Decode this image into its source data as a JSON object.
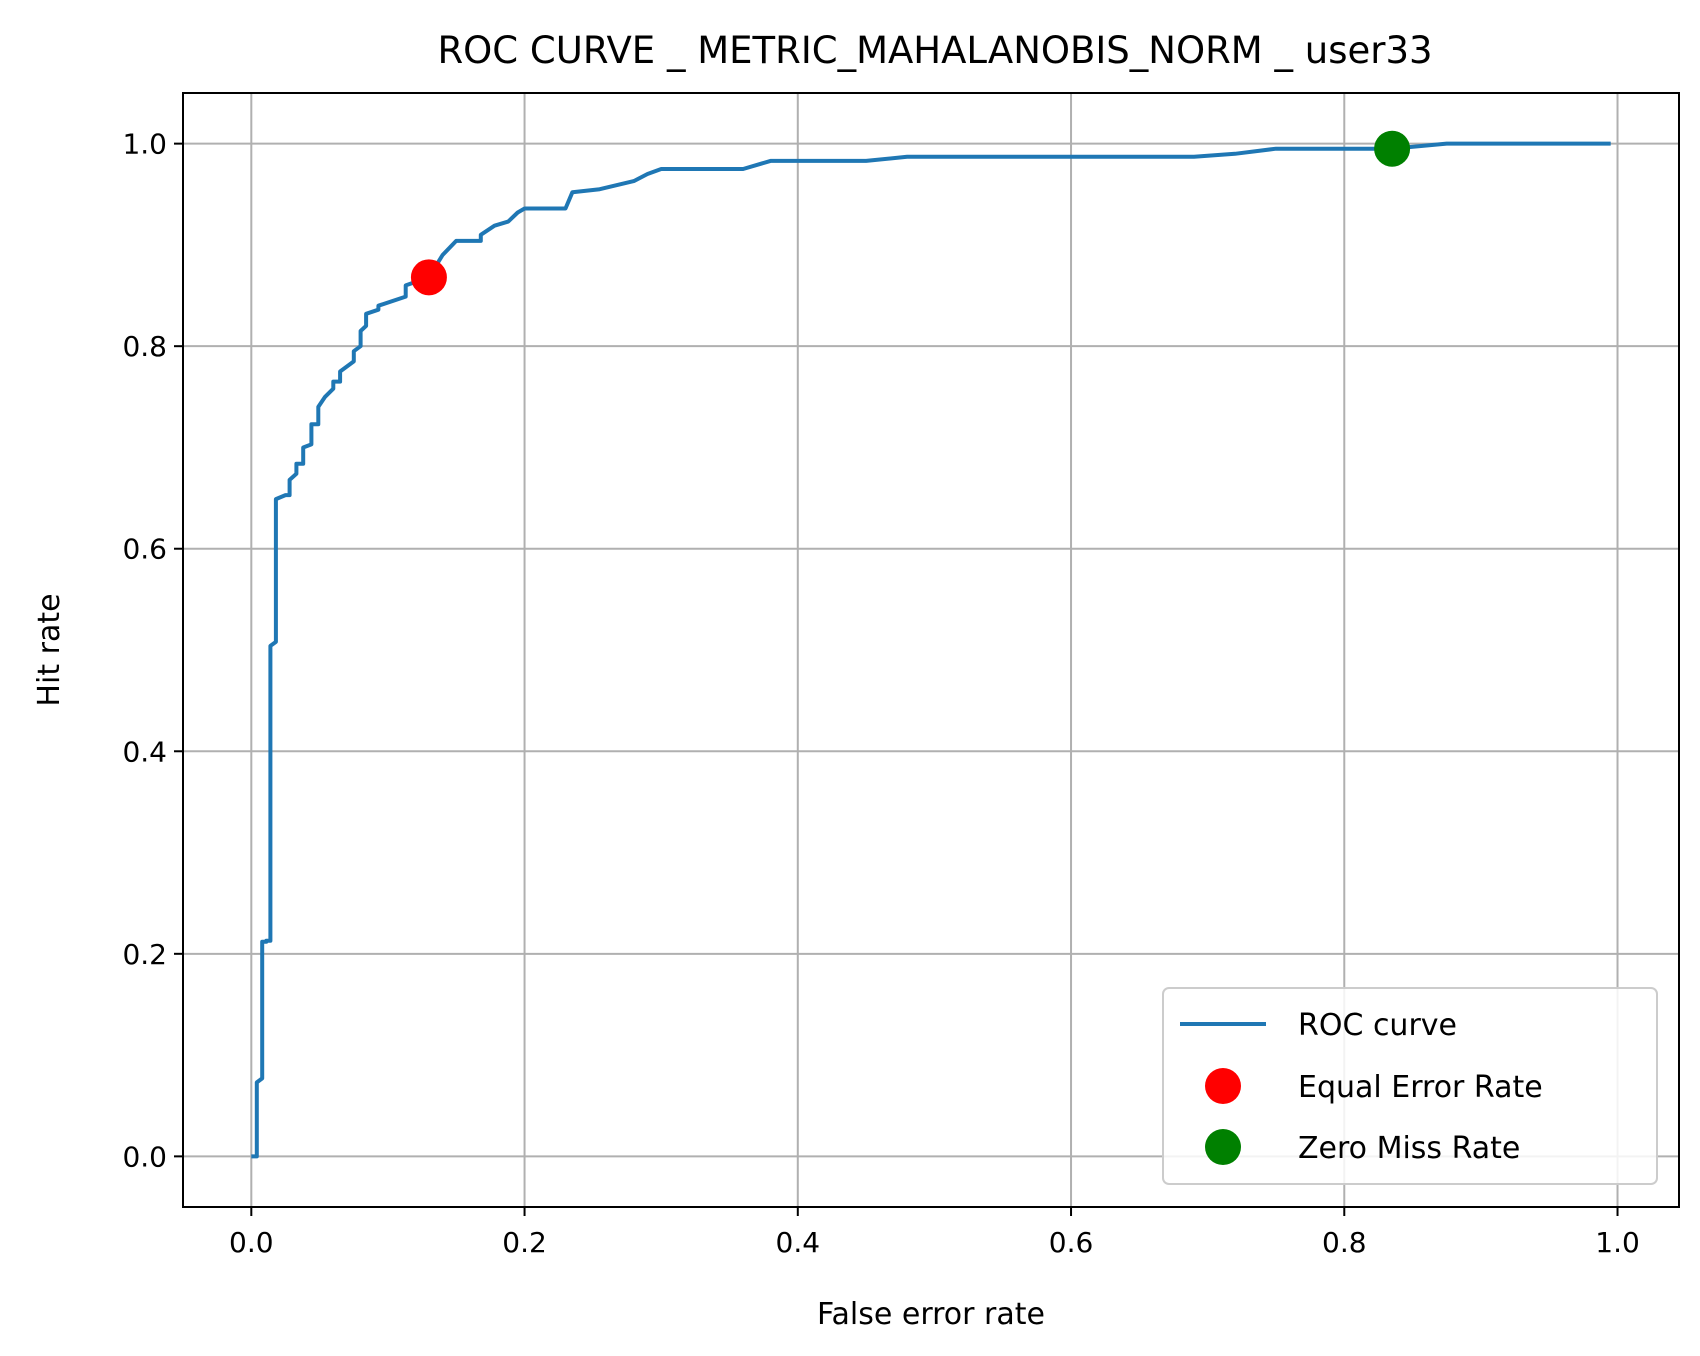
{
  "chart_data": {
    "type": "line",
    "title": "ROC CURVE _ METRIC_MAHALANOBIS_NORM _ user33",
    "xlabel": "False error rate",
    "ylabel": "Hit rate",
    "xlim": [
      -0.05,
      1.045
    ],
    "ylim": [
      -0.05,
      1.05
    ],
    "xticks": [
      0.0,
      0.2,
      0.4,
      0.6,
      0.8,
      1.0
    ],
    "xtick_labels": [
      "0.0",
      "0.2",
      "0.4",
      "0.6",
      "0.8",
      "1.0"
    ],
    "yticks": [
      0.0,
      0.2,
      0.4,
      0.6,
      0.8,
      1.0
    ],
    "ytick_labels": [
      "0.0",
      "0.2",
      "0.4",
      "0.6",
      "0.8",
      "1.0"
    ],
    "grid": true,
    "legend_position": "lower-right",
    "series": [
      {
        "name": "ROC curve",
        "color": "#1f77b4",
        "x": [
          0.0,
          0.004,
          0.004,
          0.008,
          0.008,
          0.011,
          0.011,
          0.014,
          0.014,
          0.018,
          0.018,
          0.025,
          0.028,
          0.028,
          0.033,
          0.033,
          0.038,
          0.038,
          0.044,
          0.044,
          0.049,
          0.049,
          0.054,
          0.06,
          0.06,
          0.065,
          0.065,
          0.075,
          0.075,
          0.08,
          0.08,
          0.084,
          0.084,
          0.093,
          0.093,
          0.113,
          0.113,
          0.13,
          0.14,
          0.15,
          0.168,
          0.168,
          0.178,
          0.188,
          0.195,
          0.2,
          0.23,
          0.235,
          0.255,
          0.28,
          0.29,
          0.3,
          0.36,
          0.38,
          0.45,
          0.48,
          0.69,
          0.72,
          0.75,
          0.835,
          0.875,
          0.995
        ],
        "y": [
          0.0,
          0.0,
          0.073,
          0.077,
          0.212,
          0.212,
          0.213,
          0.213,
          0.504,
          0.508,
          0.649,
          0.653,
          0.653,
          0.668,
          0.674,
          0.684,
          0.684,
          0.7,
          0.703,
          0.723,
          0.723,
          0.74,
          0.75,
          0.758,
          0.765,
          0.765,
          0.775,
          0.785,
          0.795,
          0.8,
          0.815,
          0.82,
          0.832,
          0.836,
          0.84,
          0.849,
          0.86,
          0.868,
          0.89,
          0.904,
          0.904,
          0.91,
          0.919,
          0.923,
          0.932,
          0.936,
          0.936,
          0.952,
          0.955,
          0.963,
          0.97,
          0.975,
          0.975,
          0.983,
          0.983,
          0.987,
          0.987,
          0.99,
          0.995,
          0.995,
          1.0,
          1.0
        ]
      },
      {
        "name": "Equal Error Rate",
        "color": "#ff0000",
        "marker": "circle",
        "x": [
          0.13
        ],
        "y": [
          0.868
        ]
      },
      {
        "name": "Zero Miss Rate",
        "color": "#008000",
        "marker": "circle",
        "x": [
          0.835
        ],
        "y": [
          0.995
        ]
      }
    ]
  }
}
